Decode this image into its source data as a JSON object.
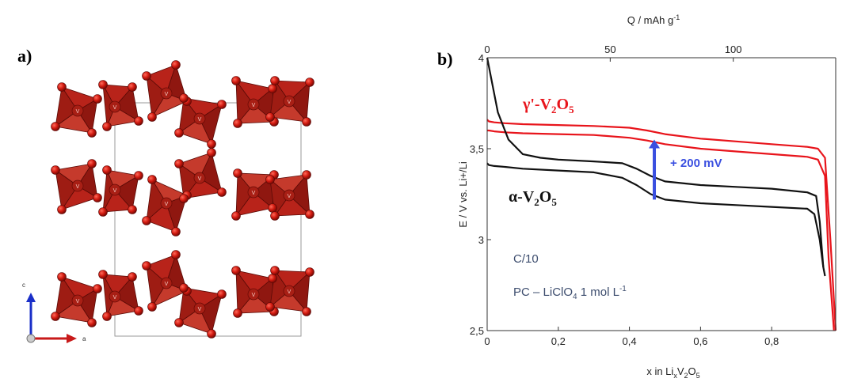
{
  "panels": {
    "a": "a)",
    "b": "b)"
  },
  "structure": {
    "axis_c": "c",
    "axis_a": "a",
    "atom_label": "V"
  },
  "chart_data": {
    "type": "line",
    "xlabel": "x in Li",
    "xlabel_sub1": "x",
    "xlabel_mid": "V",
    "xlabel_sub2": "2",
    "xlabel_end": "O",
    "xlabel_sub3": "5",
    "ylabel": "E / V vs. Li+/Li",
    "x2label": "Q / mAh g",
    "x2label_sup": "-1",
    "xlim": [
      0,
      0.98
    ],
    "ylim": [
      2.5,
      4.0
    ],
    "x_ticks": [
      "0",
      "0,2",
      "0,4",
      "0,6",
      "0,8"
    ],
    "x_tick_values": [
      0,
      0.2,
      0.4,
      0.6,
      0.8
    ],
    "y_ticks": [
      "2,5",
      "3",
      "3,5",
      "4"
    ],
    "y_tick_values": [
      2.5,
      3.0,
      3.5,
      4.0
    ],
    "x2_ticks": [
      "0",
      "50",
      "100"
    ],
    "x2_tick_values": [
      0,
      0.346,
      0.692
    ],
    "colors": {
      "gamma": "#e8141b",
      "alpha": "#111111",
      "arrow": "#3a4fe0",
      "note": "#3d4d6e"
    },
    "series": [
      {
        "name": "γ'-V2O5",
        "color": "#e8141b",
        "branch": "charge",
        "x": [
          0.0,
          0.005,
          0.02,
          0.05,
          0.1,
          0.2,
          0.3,
          0.4,
          0.45,
          0.5,
          0.6,
          0.7,
          0.8,
          0.9,
          0.93,
          0.95,
          0.965,
          0.98
        ],
        "y": [
          3.66,
          3.65,
          3.645,
          3.64,
          3.635,
          3.63,
          3.625,
          3.615,
          3.6,
          3.58,
          3.555,
          3.54,
          3.525,
          3.51,
          3.5,
          3.45,
          3.0,
          2.5
        ]
      },
      {
        "name": "γ'-V2O5",
        "color": "#e8141b",
        "branch": "discharge",
        "x": [
          0.0,
          0.005,
          0.02,
          0.05,
          0.1,
          0.2,
          0.3,
          0.4,
          0.45,
          0.5,
          0.6,
          0.7,
          0.8,
          0.9,
          0.93,
          0.95,
          0.96,
          0.975
        ],
        "y": [
          3.6,
          3.6,
          3.595,
          3.59,
          3.585,
          3.58,
          3.575,
          3.56,
          3.545,
          3.525,
          3.5,
          3.485,
          3.47,
          3.455,
          3.44,
          3.35,
          2.9,
          2.5
        ]
      },
      {
        "name": "α-V2O5",
        "color": "#111111",
        "branch": "charge",
        "x": [
          0.0,
          0.01,
          0.03,
          0.06,
          0.1,
          0.15,
          0.2,
          0.3,
          0.38,
          0.42,
          0.46,
          0.5,
          0.6,
          0.7,
          0.8,
          0.9,
          0.925,
          0.935,
          0.945
        ],
        "y": [
          4.0,
          3.9,
          3.7,
          3.55,
          3.47,
          3.45,
          3.44,
          3.43,
          3.42,
          3.39,
          3.35,
          3.32,
          3.3,
          3.29,
          3.28,
          3.26,
          3.24,
          3.1,
          2.85
        ]
      },
      {
        "name": "α-V2O5",
        "color": "#111111",
        "branch": "discharge",
        "x": [
          0.0,
          0.005,
          0.02,
          0.05,
          0.1,
          0.2,
          0.3,
          0.38,
          0.42,
          0.46,
          0.5,
          0.6,
          0.7,
          0.8,
          0.9,
          0.92,
          0.935,
          0.945,
          0.95
        ],
        "y": [
          3.42,
          3.41,
          3.405,
          3.4,
          3.39,
          3.38,
          3.37,
          3.34,
          3.3,
          3.25,
          3.22,
          3.2,
          3.19,
          3.18,
          3.17,
          3.14,
          3.0,
          2.85,
          2.8
        ]
      }
    ],
    "annotations": {
      "gamma_label_pre": "γ'-V",
      "gamma_sub1": "2",
      "gamma_mid": "O",
      "gamma_sub2": "5",
      "alpha_label_pre": "α-V",
      "alpha_sub1": "2",
      "alpha_mid": "O",
      "alpha_sub2": "5",
      "shift": "+ 200 mV",
      "rate": "C/10",
      "electrolyte_pre": "PC – LiClO",
      "electrolyte_sub": "4",
      "electrolyte_post": " 1 mol L",
      "electrolyte_sup": "-1"
    },
    "arrow": {
      "x": 0.47,
      "y_from": 3.22,
      "y_to": 3.55
    }
  }
}
